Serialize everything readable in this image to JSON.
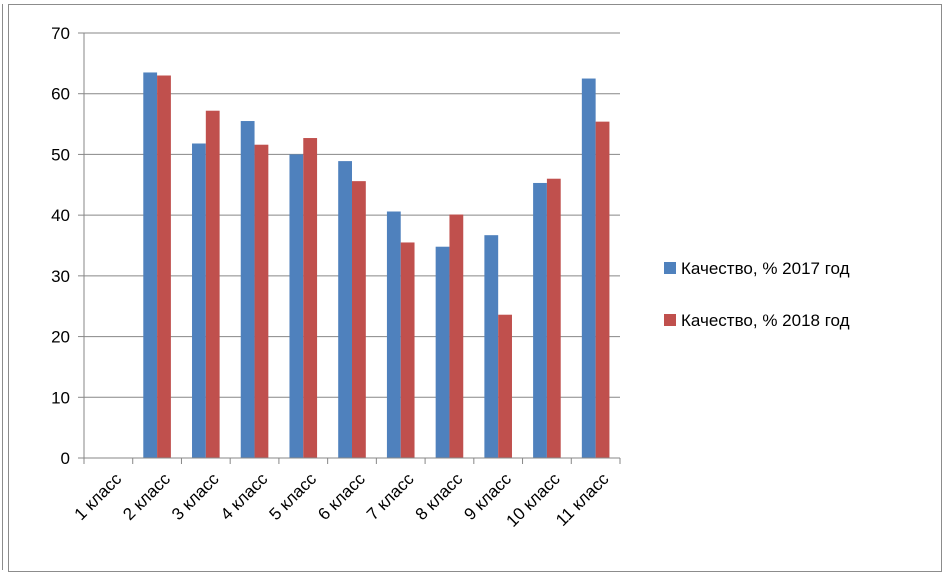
{
  "chart_data": {
    "type": "bar",
    "categories": [
      "1 класс",
      "2 класс",
      "3 класс",
      "4 класс",
      "5 класс",
      "6 класс",
      "7 класс",
      "8 класс",
      "9 класс",
      "10 класс",
      "11 класс"
    ],
    "series": [
      {
        "name": "Качество, % 2017 год",
        "color": "#4f81bd",
        "values": [
          null,
          63.5,
          51.8,
          55.5,
          50.0,
          48.9,
          40.6,
          34.8,
          36.7,
          45.3,
          62.5
        ]
      },
      {
        "name": "Качество, % 2018 год",
        "color": "#c0504d",
        "values": [
          null,
          63.0,
          57.2,
          51.6,
          52.7,
          45.6,
          35.5,
          40.1,
          23.6,
          46.0,
          55.4
        ]
      }
    ],
    "ylim": [
      0,
      70
    ],
    "yticks": [
      0,
      10,
      20,
      30,
      40,
      50,
      60,
      70
    ],
    "grid": true,
    "legend_position": "right",
    "xlabel_rotation": "diagonal"
  }
}
